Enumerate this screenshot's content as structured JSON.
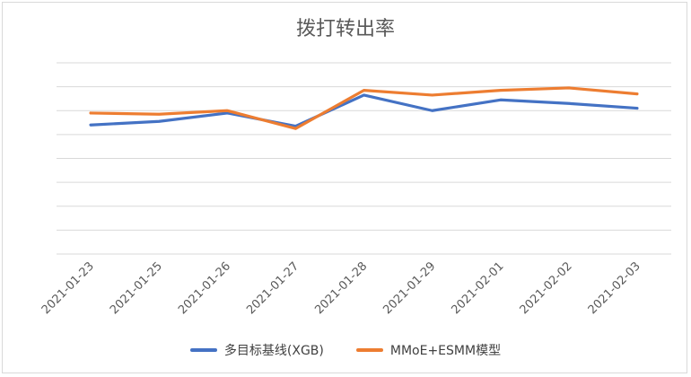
{
  "chart_data": {
    "type": "line",
    "title": "拨打转出率",
    "xlabel": "",
    "ylabel": "",
    "categories": [
      "2021-01-23",
      "2021-01-25",
      "2021-01-26",
      "2021-01-27",
      "2021-01-28",
      "2021-01-29",
      "2021-02-01",
      "2021-02-02",
      "2021-02-03"
    ],
    "series": [
      {
        "name": "多目标基线(XGB)",
        "color": "#4472c4",
        "values": [
          5.4,
          5.55,
          5.9,
          5.35,
          6.65,
          6.0,
          6.45,
          6.3,
          6.1
        ]
      },
      {
        "name": "MMoE+ESMM模型",
        "color": "#ed7d31",
        "values": [
          5.9,
          5.85,
          6.0,
          5.25,
          6.85,
          6.65,
          6.85,
          6.95,
          6.7
        ]
      }
    ],
    "ylim": [
      0,
      8
    ],
    "grid": true,
    "legend_position": "bottom"
  }
}
